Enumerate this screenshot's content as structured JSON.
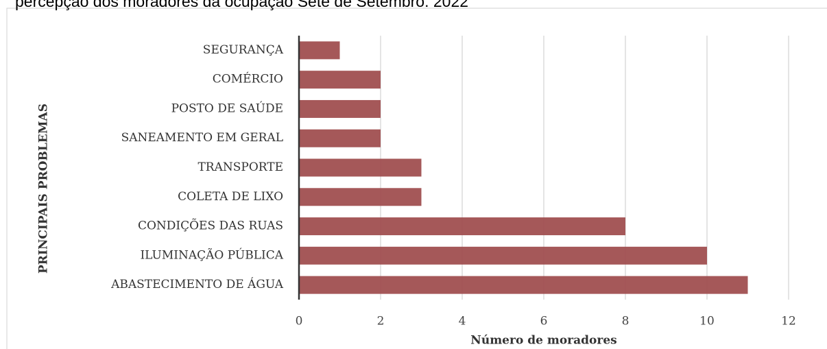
{
  "chart_data": {
    "type": "hbar",
    "title": "percepção dos moradores da ocupação Sete de Setembro. 2022",
    "x_label": "Número de moradores",
    "y_label": "PRINCIPAIS PROBLEMAS",
    "categories": [
      "SEGURANÇA",
      "COMÉRCIO",
      "POSTO DE SAÚDE",
      "SANEAMENTO EM GERAL",
      "TRANSPORTE",
      "COLETA DE LIXO ",
      "CONDIÇÕES DAS RUAS",
      "ILUMINAÇÃO PÚBLICA",
      "ABASTECIMENTO DE ÁGUA"
    ],
    "values": [
      1,
      2,
      2,
      2,
      3,
      3,
      8,
      10,
      11
    ],
    "color": "#a04f50",
    "xlim": [
      0,
      12
    ],
    "xticks": [
      0,
      2,
      4,
      6,
      8,
      10,
      12
    ],
    "grid": true
  }
}
